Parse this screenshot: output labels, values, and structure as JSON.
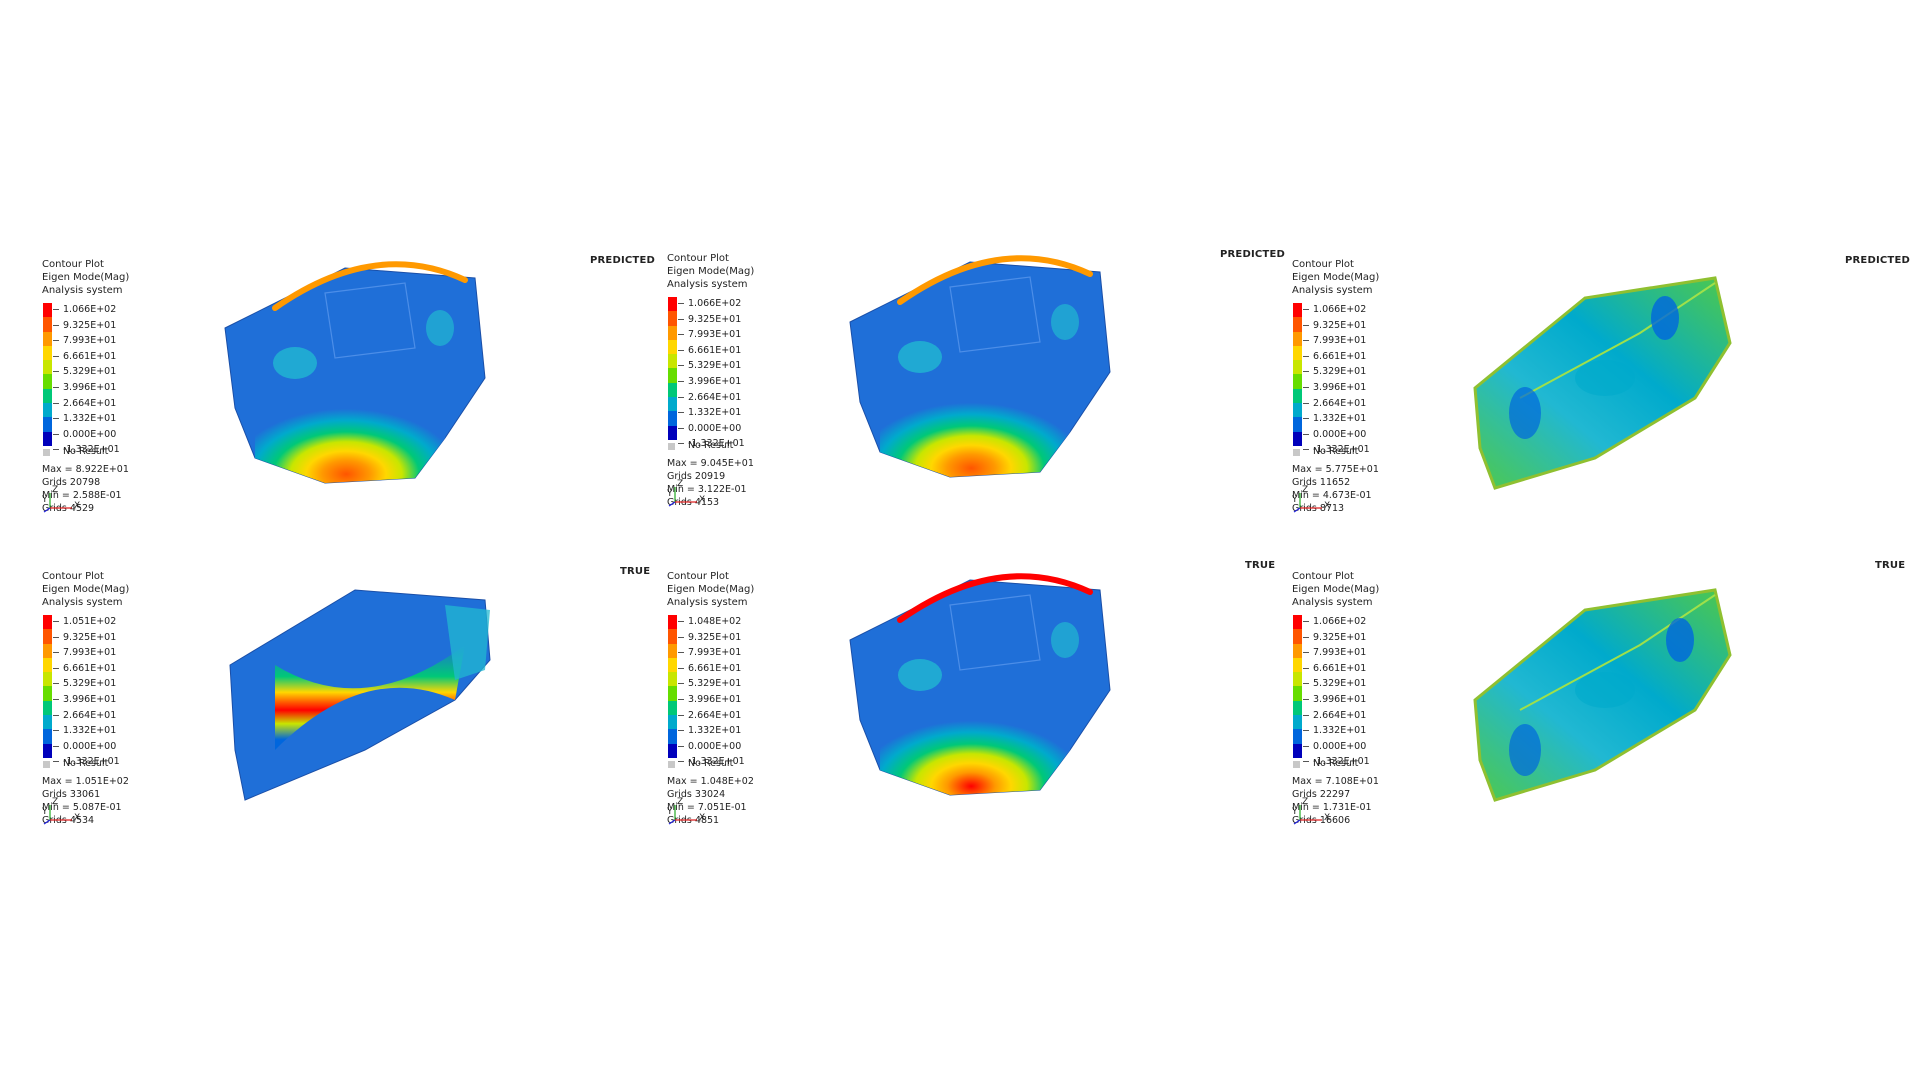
{
  "colors": {
    "scale": [
      "#ff0000",
      "#ff5500",
      "#ff9900",
      "#ffd700",
      "#c8e600",
      "#66dd00",
      "#00c878",
      "#00aacc",
      "#0066dd",
      "#0000bb"
    ],
    "blue_part": "#1f6fd8",
    "cyan_part": "#21b8d2",
    "green_part": "#4fc94a",
    "no_result": "#c8c8c8"
  },
  "panels": [
    {
      "label": "PREDICTED",
      "legend": {
        "title": "Contour Plot",
        "subtitle": "Eigen Mode(Mag)",
        "system": "Analysis system",
        "ticks": [
          "1.066E+02",
          "9.325E+01",
          "7.993E+01",
          "6.661E+01",
          "5.329E+01",
          "3.996E+01",
          "2.664E+01",
          "1.332E+01",
          "0.000E+00",
          "-1.332E+01"
        ],
        "no_result": "No Result",
        "max": "Max = 8.922E+01",
        "grids_max": "Grids 20798",
        "min": "Min = 2.588E-01",
        "grids_min": "Grids 4529"
      },
      "triad": {
        "y": "Y",
        "z": "Z",
        "x": "X"
      }
    },
    {
      "label": "PREDICTED",
      "legend": {
        "title": "Contour Plot",
        "subtitle": "Eigen Mode(Mag)",
        "system": "Analysis system",
        "ticks": [
          "1.066E+02",
          "9.325E+01",
          "7.993E+01",
          "6.661E+01",
          "5.329E+01",
          "3.996E+01",
          "2.664E+01",
          "1.332E+01",
          "0.000E+00",
          "-1.332E+01"
        ],
        "no_result": "No Result",
        "max": "Max = 9.045E+01",
        "grids_max": "Grids 20919",
        "min": "Min = 3.122E-01",
        "grids_min": "Grids 4153"
      },
      "triad": {
        "y": "Y",
        "z": "Z",
        "x": "X"
      }
    },
    {
      "label": "PREDICTED",
      "legend": {
        "title": "Contour Plot",
        "subtitle": "Eigen Mode(Mag)",
        "system": "Analysis system",
        "ticks": [
          "1.066E+02",
          "9.325E+01",
          "7.993E+01",
          "6.661E+01",
          "5.329E+01",
          "3.996E+01",
          "2.664E+01",
          "1.332E+01",
          "0.000E+00",
          "-1.332E+01"
        ],
        "no_result": "No Result",
        "max": "Max = 5.775E+01",
        "grids_max": "Grids 11652",
        "min": "Min = 4.673E-01",
        "grids_min": "Grids 8713"
      },
      "triad": {
        "y": "Y",
        "z": "Z",
        "x": "X"
      }
    },
    {
      "label": "TRUE",
      "legend": {
        "title": "Contour Plot",
        "subtitle": "Eigen Mode(Mag)",
        "system": "Analysis system",
        "ticks": [
          "1.051E+02",
          "9.325E+01",
          "7.993E+01",
          "6.661E+01",
          "5.329E+01",
          "3.996E+01",
          "2.664E+01",
          "1.332E+01",
          "0.000E+00",
          "-1.332E+01"
        ],
        "no_result": "No Result",
        "max": "Max = 1.051E+02",
        "grids_max": "Grids 33061",
        "min": "Min = 5.087E-01",
        "grids_min": "Grids 4534"
      },
      "triad": {
        "y": "Y",
        "z": "Z",
        "x": "X"
      }
    },
    {
      "label": "TRUE",
      "legend": {
        "title": "Contour Plot",
        "subtitle": "Eigen Mode(Mag)",
        "system": "Analysis system",
        "ticks": [
          "1.048E+02",
          "9.325E+01",
          "7.993E+01",
          "6.661E+01",
          "5.329E+01",
          "3.996E+01",
          "2.664E+01",
          "1.332E+01",
          "0.000E+00",
          "-1.332E+01"
        ],
        "no_result": "No Result",
        "max": "Max = 1.048E+02",
        "grids_max": "Grids 33024",
        "min": "Min = 7.051E-01",
        "grids_min": "Grids 4851"
      },
      "triad": {
        "y": "Y",
        "z": "Z",
        "x": "X"
      }
    },
    {
      "label": "TRUE",
      "legend": {
        "title": "Contour Plot",
        "subtitle": "Eigen Mode(Mag)",
        "system": "Analysis system",
        "ticks": [
          "1.066E+02",
          "9.325E+01",
          "7.993E+01",
          "6.661E+01",
          "5.329E+01",
          "3.996E+01",
          "2.664E+01",
          "1.332E+01",
          "0.000E+00",
          "-1.332E+01"
        ],
        "no_result": "No Result",
        "max": "Max = 7.108E+01",
        "grids_max": "Grids 22297",
        "min": "Min = 1.731E-01",
        "grids_min": "Grids 16606"
      },
      "triad": {
        "y": "Y",
        "z": "Z",
        "x": "X"
      }
    }
  ]
}
